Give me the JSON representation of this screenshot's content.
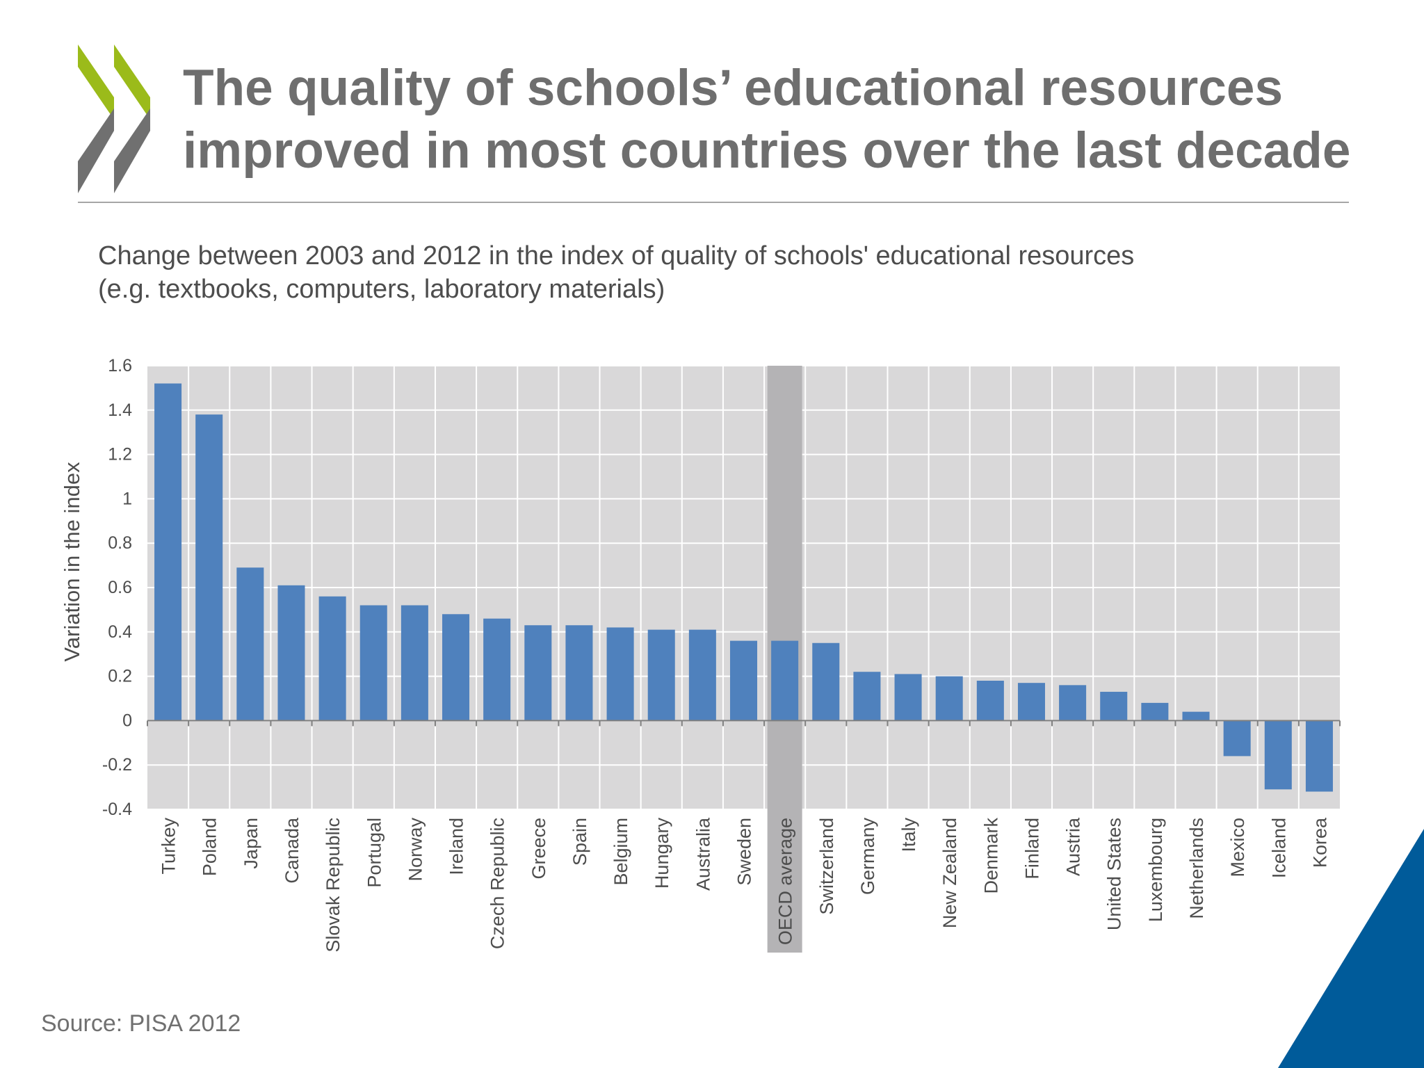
{
  "slide": {
    "title_line1": "The quality of schools’ educational resources",
    "title_line2": "improved in most countries over the last decade",
    "subtitle_line1": "Change between 2003 and 2012 in the index of quality of schools' educational resources",
    "subtitle_line2": "(e.g. textbooks, computers, laboratory materials)",
    "source": "Source: PISA 2012",
    "logo_icon": "oecd-chevrons-icon",
    "colors": {
      "title": "#6e6e6e",
      "logo_green": "#9bbb1a",
      "logo_gray": "#707070",
      "corner_blue": "#005b9a"
    }
  },
  "chart_data": {
    "type": "bar",
    "title": "",
    "xlabel": "",
    "ylabel": "Variation in the index",
    "ylim": [
      -0.4,
      1.6
    ],
    "yticks": [
      1.6,
      1.4,
      1.2,
      1,
      0.8,
      0.6,
      0.4,
      0.2,
      0,
      -0.2,
      -0.4
    ],
    "grid": true,
    "highlight_category": "OECD average",
    "categories": [
      "Turkey",
      "Poland",
      "Japan",
      "Canada",
      "Slovak Republic",
      "Portugal",
      "Norway",
      "Ireland",
      "Czech Republic",
      "Greece",
      "Spain",
      "Belgium",
      "Hungary",
      "Australia",
      "Sweden",
      "OECD average",
      "Switzerland",
      "Germany",
      "Italy",
      "New Zealand",
      "Denmark",
      "Finland",
      "Austria",
      "United States",
      "Luxembourg",
      "Netherlands",
      "Mexico",
      "Iceland",
      "Korea"
    ],
    "values": [
      1.52,
      1.38,
      0.69,
      0.61,
      0.56,
      0.52,
      0.52,
      0.48,
      0.46,
      0.43,
      0.43,
      0.42,
      0.41,
      0.41,
      0.36,
      0.36,
      0.35,
      0.22,
      0.21,
      0.2,
      0.18,
      0.17,
      0.16,
      0.13,
      0.08,
      0.04,
      -0.16,
      -0.31,
      -0.32
    ],
    "colors": {
      "bar": "#4f81bd",
      "plot_background": "#d9d8d9",
      "gridline": "#ffffff",
      "highlight": "#b4b3b5",
      "axis": "#7f7f7f"
    }
  }
}
